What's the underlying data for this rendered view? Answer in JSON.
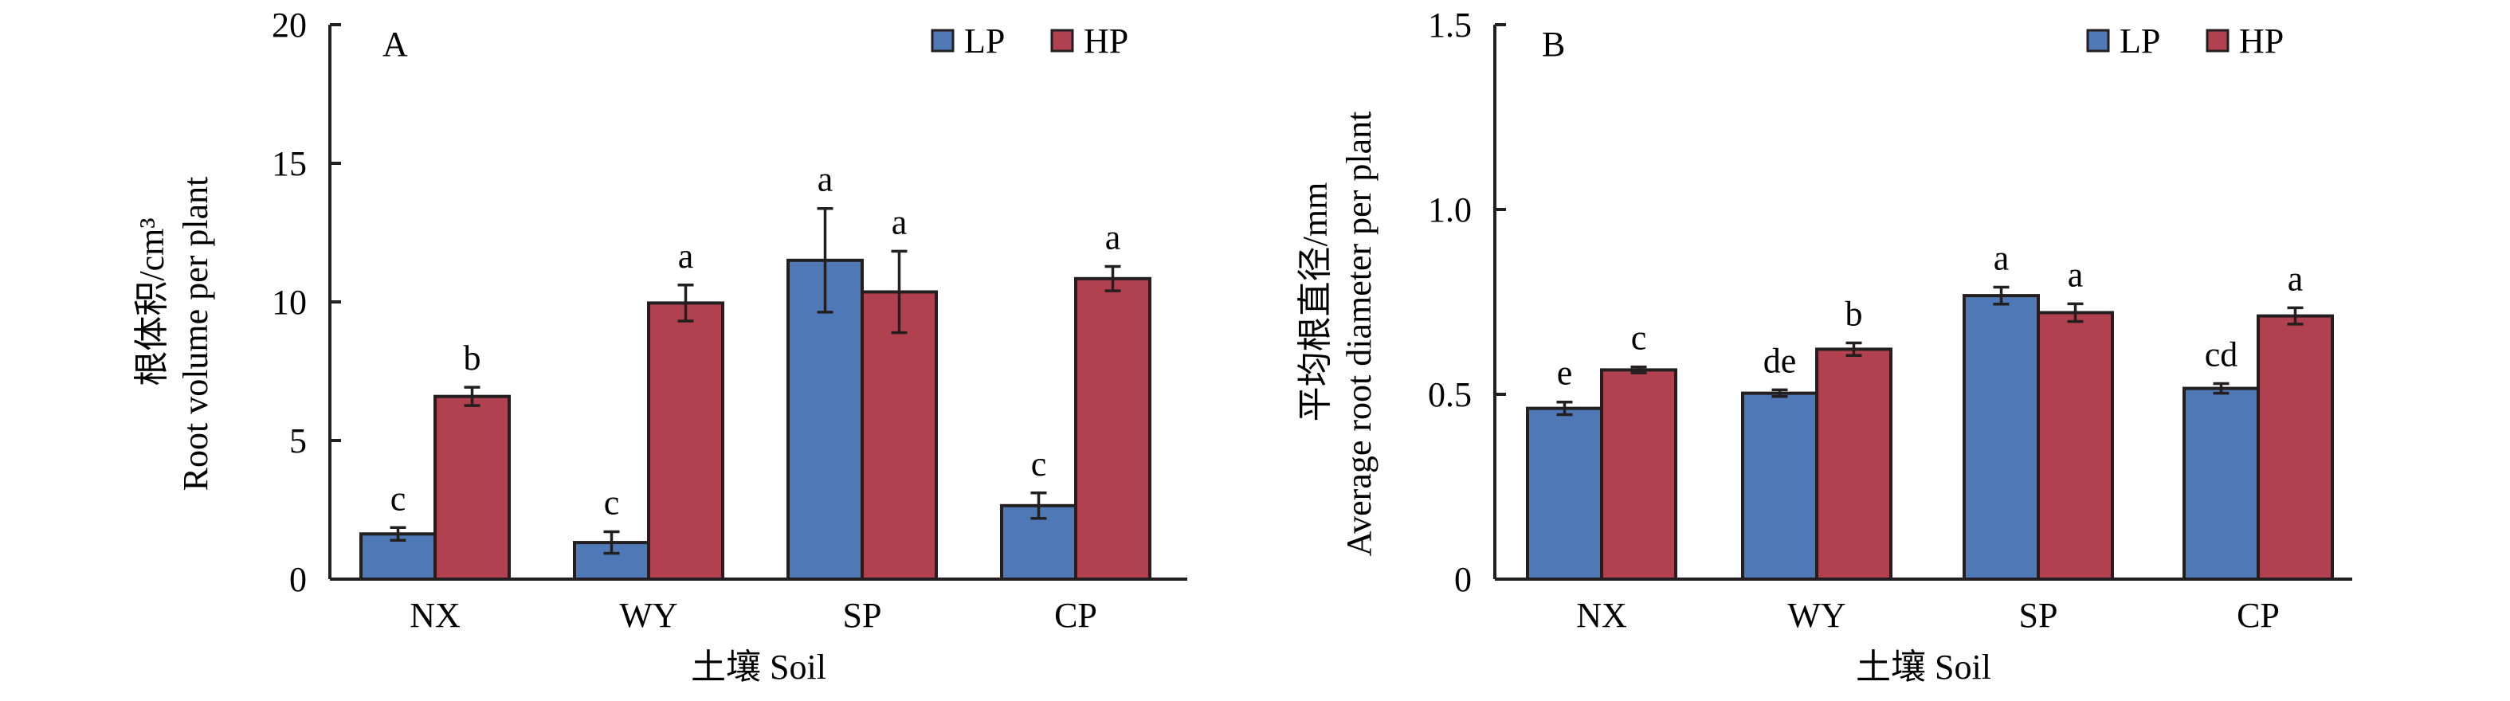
{
  "chart_data": [
    {
      "type": "bar",
      "panel": "A",
      "title": "",
      "categories": [
        "NX",
        "WY",
        "SP",
        "CP"
      ],
      "xlabel": "土壤 Soil",
      "ylabel_cn": "根体积/cm³",
      "ylabel_en": "Root volume per plant",
      "ylim": [
        0,
        20
      ],
      "yticks": [
        0,
        5,
        10,
        15,
        20
      ],
      "ytick_labels": [
        "0",
        "5",
        "10",
        "15",
        "20"
      ],
      "grid": false,
      "legend_position": "top-right",
      "series": [
        {
          "name": "LP",
          "color": "#4f79b6",
          "values": [
            1.63,
            1.32,
            11.5,
            2.65
          ],
          "errors": [
            0.23,
            0.39,
            1.87,
            0.46
          ],
          "letters": [
            "c",
            "c",
            "a",
            "c"
          ]
        },
        {
          "name": "HP",
          "color": "#b24150",
          "values": [
            6.59,
            9.96,
            10.36,
            10.84
          ],
          "errors": [
            0.33,
            0.65,
            1.47,
            0.44
          ],
          "letters": [
            "b",
            "a",
            "a",
            "a"
          ]
        }
      ]
    },
    {
      "type": "bar",
      "panel": "B",
      "title": "",
      "categories": [
        "NX",
        "WY",
        "SP",
        "CP"
      ],
      "xlabel": "土壤 Soil",
      "ylabel_cn": "平均根直径/mm",
      "ylabel_en": "Average root diameter per plant",
      "ylim": [
        0,
        1.5
      ],
      "yticks": [
        0,
        0.5,
        1.0,
        1.5
      ],
      "ytick_labels": [
        "0",
        "0.5",
        "1.0",
        "1.5"
      ],
      "grid": false,
      "legend_position": "top-right",
      "series": [
        {
          "name": "LP",
          "color": "#4f79b6",
          "values": [
            0.462,
            0.503,
            0.767,
            0.516
          ],
          "errors": [
            0.017,
            0.009,
            0.023,
            0.013
          ],
          "letters": [
            "e",
            "de",
            "a",
            "cd"
          ]
        },
        {
          "name": "HP",
          "color": "#b24150",
          "values": [
            0.566,
            0.622,
            0.721,
            0.712
          ],
          "errors": [
            0.008,
            0.017,
            0.024,
            0.022
          ],
          "letters": [
            "c",
            "b",
            "a",
            "a"
          ]
        }
      ]
    }
  ]
}
